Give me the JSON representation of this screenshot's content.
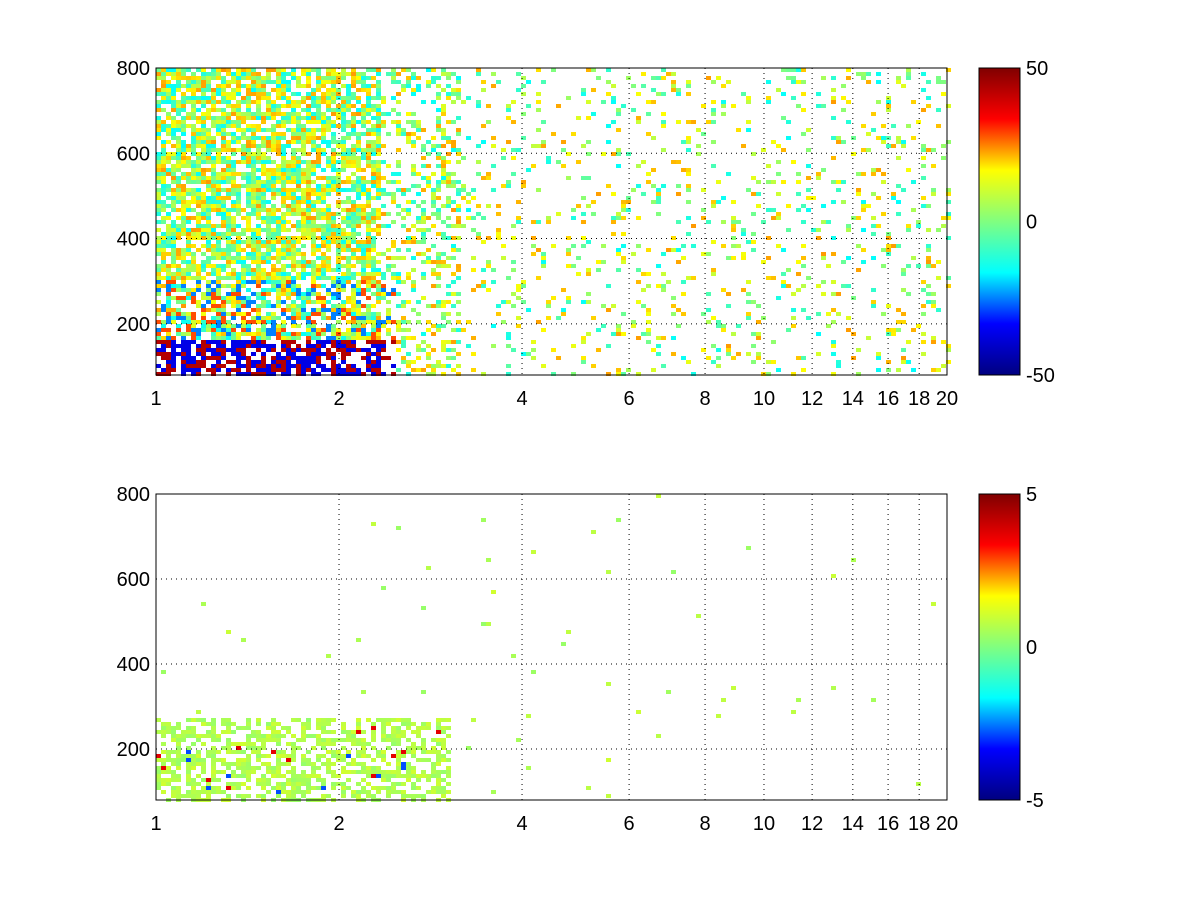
{
  "chart_data": [
    {
      "type": "heatmap",
      "title": "",
      "xlabel": "",
      "ylabel": "",
      "xlim": [
        1,
        20
      ],
      "ylim": [
        80,
        800
      ],
      "x_scale": "log",
      "grid": true,
      "x_ticks": [
        1,
        2,
        4,
        6,
        8,
        10,
        12,
        14,
        16,
        18,
        20
      ],
      "x_tick_labels": [
        "1",
        "2",
        "4",
        "6",
        "8",
        "10",
        "12",
        "14",
        "16",
        "18",
        "20"
      ],
      "y_ticks": [
        200,
        400,
        600,
        800
      ],
      "y_tick_labels": [
        "200",
        "400",
        "600",
        "800"
      ],
      "colormap": "jet",
      "clim": [
        -50,
        50
      ],
      "colorbar_ticks": [
        50,
        0,
        -50
      ],
      "colorbar_tick_labels": [
        "50",
        "0",
        "-50"
      ],
      "colorbar_colors": [
        "#800000",
        "#ff0000",
        "#ffff00",
        "#80ff80",
        "#00ffff",
        "#0000ff",
        "#000080"
      ]
    },
    {
      "type": "heatmap",
      "title": "",
      "xlabel": "",
      "ylabel": "",
      "xlim": [
        1,
        20
      ],
      "ylim": [
        80,
        800
      ],
      "x_scale": "log",
      "grid": true,
      "x_ticks": [
        1,
        2,
        4,
        6,
        8,
        10,
        12,
        14,
        16,
        18,
        20
      ],
      "x_tick_labels": [
        "1",
        "2",
        "4",
        "6",
        "8",
        "10",
        "12",
        "14",
        "16",
        "18",
        "20"
      ],
      "y_ticks": [
        200,
        400,
        600,
        800
      ],
      "y_tick_labels": [
        "200",
        "400",
        "600",
        "800"
      ],
      "colormap": "jet",
      "clim": [
        -5,
        5
      ],
      "colorbar_ticks": [
        5,
        0,
        -5
      ],
      "colorbar_tick_labels": [
        "5",
        "0",
        "-5"
      ],
      "colorbar_colors": [
        "#800000",
        "#ff0000",
        "#ffff00",
        "#80ff80",
        "#00ffff",
        "#0000ff",
        "#000080"
      ]
    }
  ]
}
